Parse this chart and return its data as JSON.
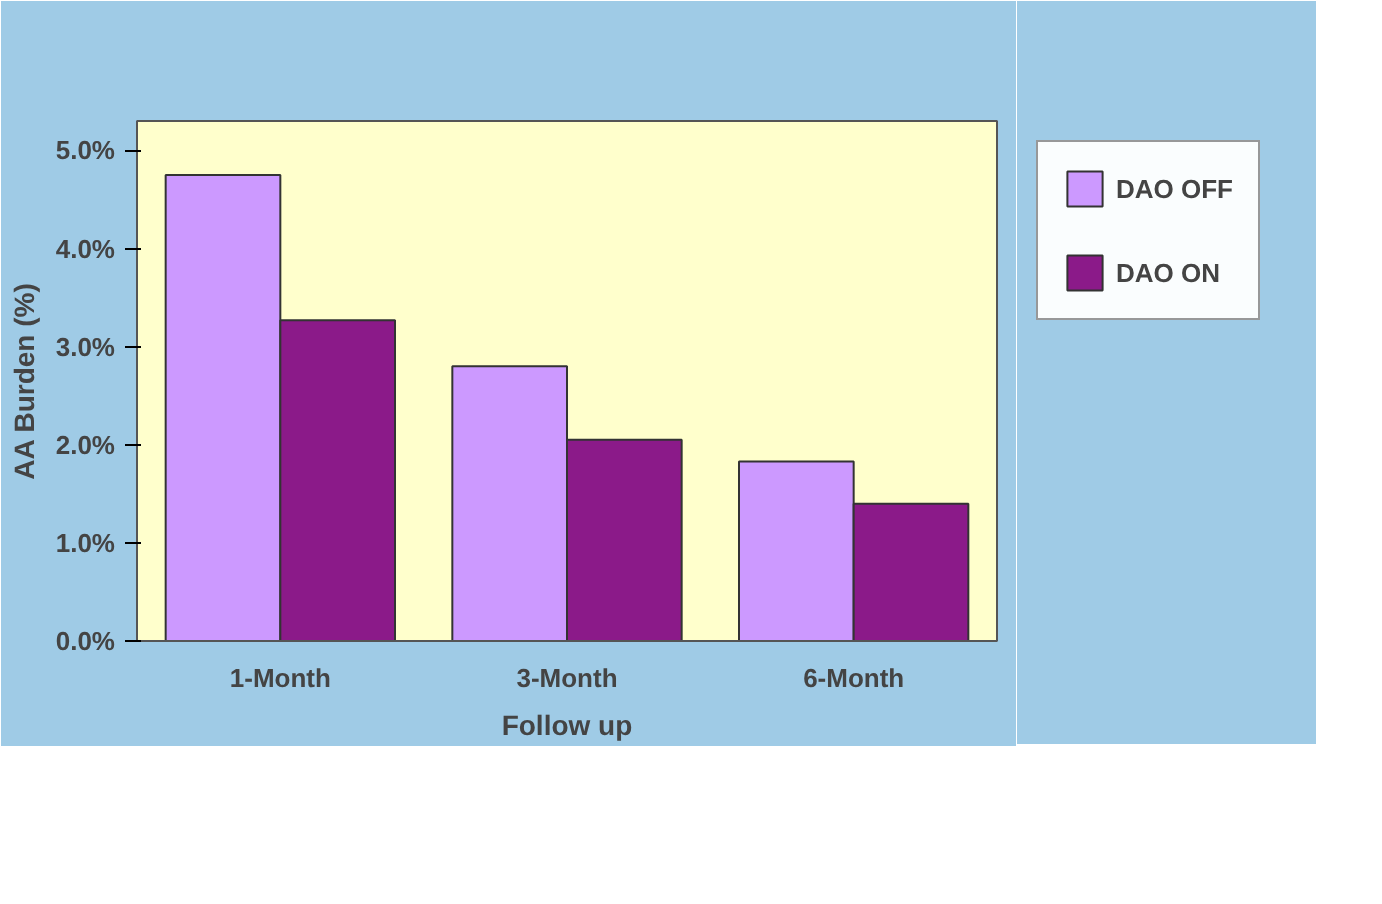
{
  "chart_data": {
    "type": "bar",
    "xlabel": "Follow up",
    "ylabel": "AA Burden (%)",
    "categories": [
      "1-Month",
      "3-Month",
      "6-Month"
    ],
    "series": [
      {
        "name": "DAO OFF",
        "color": "#cc99ff",
        "values": [
          4.75,
          2.8,
          1.83
        ]
      },
      {
        "name": "DAO ON",
        "color": "#8b1a89",
        "values": [
          3.27,
          2.05,
          1.4
        ]
      }
    ],
    "ylim": [
      0,
      5.3
    ],
    "yticks": [
      {
        "value": 0,
        "label": "0.0%"
      },
      {
        "value": 1,
        "label": "1.0%"
      },
      {
        "value": 2,
        "label": "2.0%"
      },
      {
        "value": 3,
        "label": "3.0%"
      },
      {
        "value": 4,
        "label": "4.0%"
      },
      {
        "value": 5,
        "label": "5.0%"
      }
    ],
    "grid": false,
    "legend": "right"
  }
}
